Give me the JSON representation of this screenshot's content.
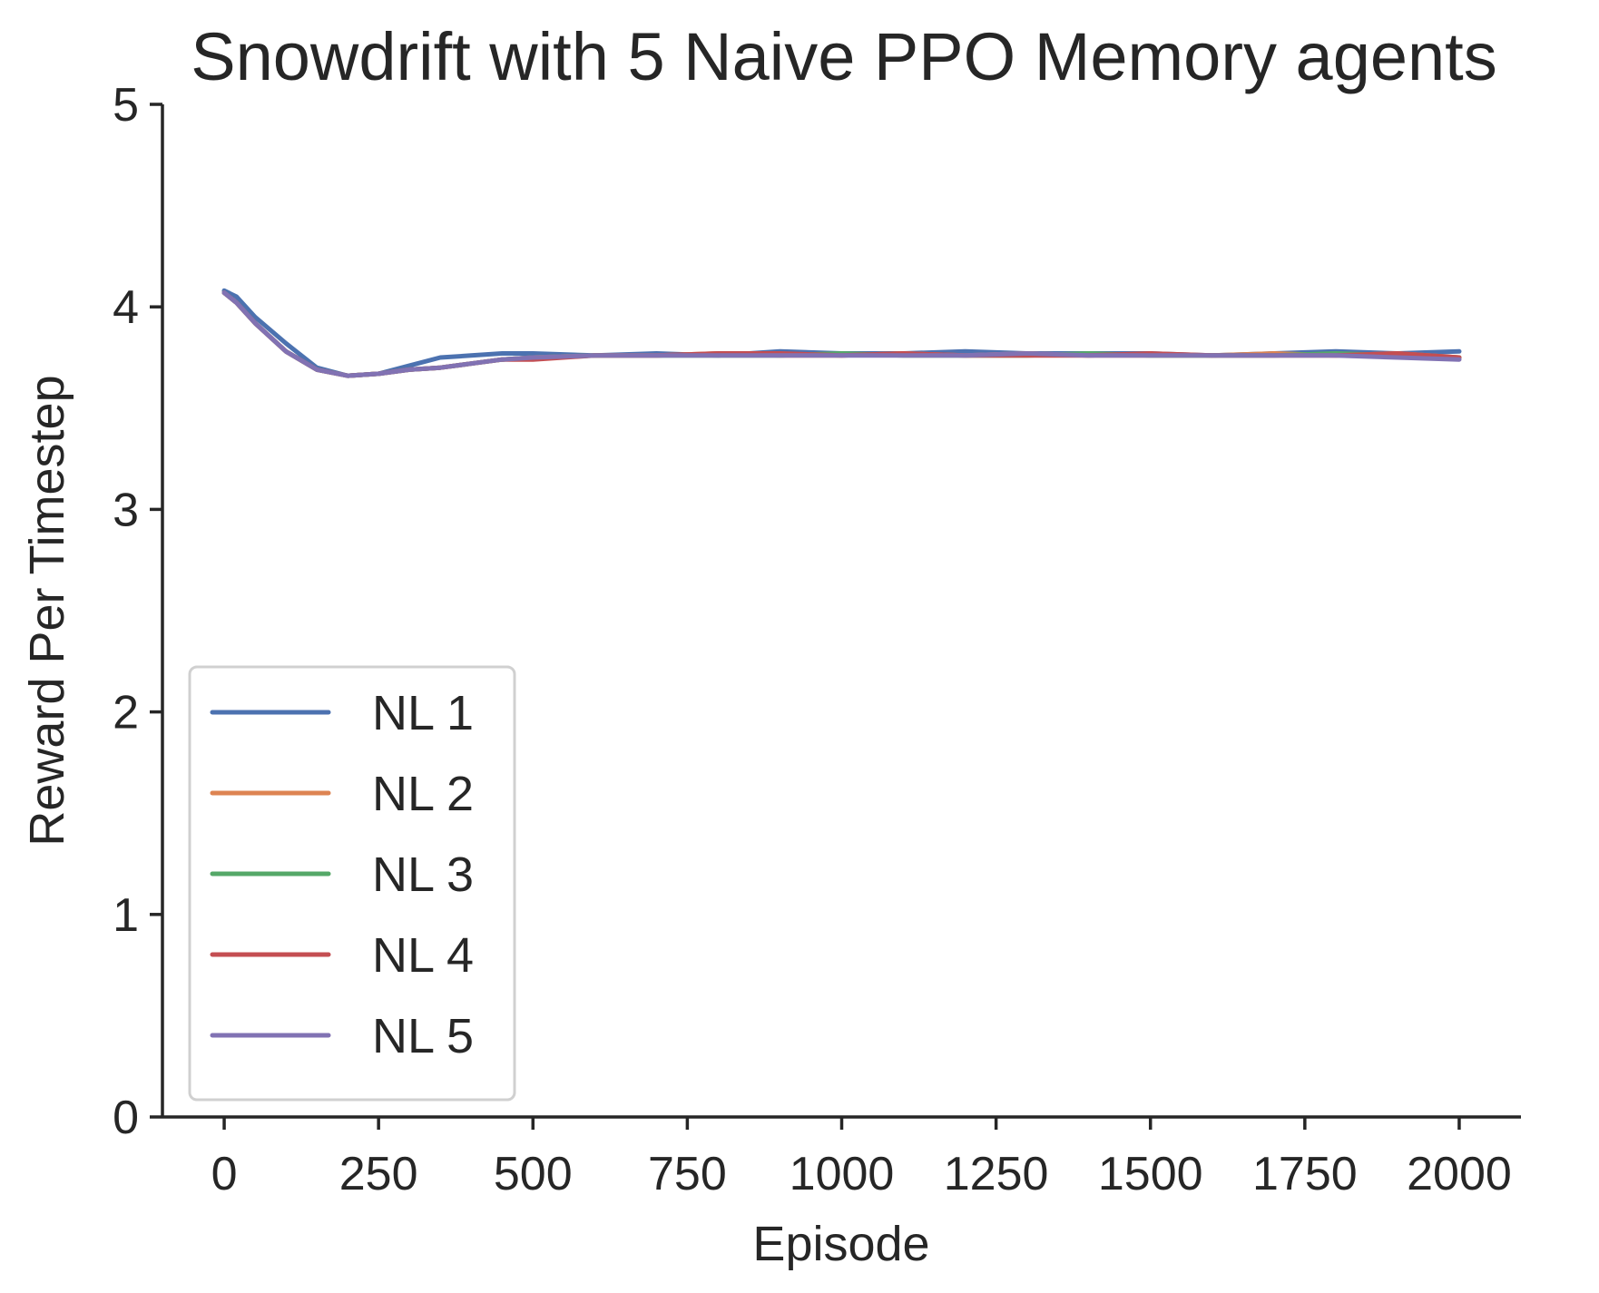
{
  "chart_data": {
    "type": "line",
    "title": "Snowdrift with 5 Naive PPO Memory agents",
    "xlabel": "Episode",
    "ylabel": "Reward Per Timestep",
    "xlim": [
      -100,
      2100
    ],
    "ylim": [
      0,
      5
    ],
    "x_ticks": [
      0,
      250,
      500,
      750,
      1000,
      1250,
      1500,
      1750,
      2000
    ],
    "y_ticks": [
      0,
      1,
      2,
      3,
      4,
      5
    ],
    "legend_position": "lower-left",
    "grid": false,
    "series": [
      {
        "name": "NL 1",
        "color": "#4c72b0",
        "x": [
          0,
          20,
          50,
          100,
          150,
          200,
          250,
          300,
          350,
          400,
          450,
          500,
          600,
          700,
          800,
          900,
          1000,
          1100,
          1200,
          1300,
          1400,
          1500,
          1600,
          1700,
          1800,
          1900,
          2000
        ],
        "y": [
          4.08,
          4.05,
          3.95,
          3.82,
          3.7,
          3.66,
          3.67,
          3.71,
          3.75,
          3.76,
          3.77,
          3.77,
          3.76,
          3.77,
          3.76,
          3.78,
          3.77,
          3.77,
          3.78,
          3.77,
          3.77,
          3.77,
          3.76,
          3.77,
          3.78,
          3.77,
          3.78
        ]
      },
      {
        "name": "NL 2",
        "color": "#dd8452",
        "x": [
          0,
          20,
          50,
          100,
          150,
          200,
          250,
          300,
          350,
          400,
          450,
          500,
          600,
          700,
          800,
          900,
          1000,
          1100,
          1200,
          1300,
          1400,
          1500,
          1600,
          1700,
          1800,
          1900,
          2000
        ],
        "y": [
          4.07,
          4.02,
          3.92,
          3.78,
          3.69,
          3.66,
          3.67,
          3.69,
          3.7,
          3.72,
          3.74,
          3.75,
          3.76,
          3.76,
          3.77,
          3.76,
          3.76,
          3.77,
          3.76,
          3.77,
          3.76,
          3.76,
          3.76,
          3.77,
          3.76,
          3.77,
          3.75
        ]
      },
      {
        "name": "NL 3",
        "color": "#55a868",
        "x": [
          0,
          20,
          50,
          100,
          150,
          200,
          250,
          300,
          350,
          400,
          450,
          500,
          600,
          700,
          800,
          900,
          1000,
          1100,
          1200,
          1300,
          1400,
          1500,
          1600,
          1700,
          1800,
          1900,
          2000
        ],
        "y": [
          4.07,
          4.02,
          3.92,
          3.78,
          3.69,
          3.66,
          3.67,
          3.69,
          3.7,
          3.72,
          3.74,
          3.75,
          3.76,
          3.76,
          3.76,
          3.76,
          3.77,
          3.76,
          3.76,
          3.76,
          3.77,
          3.76,
          3.76,
          3.76,
          3.77,
          3.76,
          3.75
        ]
      },
      {
        "name": "NL 4",
        "color": "#c44e52",
        "x": [
          0,
          20,
          50,
          100,
          150,
          200,
          250,
          300,
          350,
          400,
          450,
          500,
          600,
          700,
          800,
          900,
          1000,
          1100,
          1200,
          1300,
          1400,
          1500,
          1600,
          1700,
          1800,
          1900,
          2000
        ],
        "y": [
          4.07,
          4.02,
          3.92,
          3.78,
          3.69,
          3.66,
          3.67,
          3.69,
          3.7,
          3.72,
          3.74,
          3.74,
          3.76,
          3.76,
          3.77,
          3.77,
          3.76,
          3.77,
          3.76,
          3.76,
          3.76,
          3.77,
          3.76,
          3.76,
          3.76,
          3.77,
          3.75
        ]
      },
      {
        "name": "NL 5",
        "color": "#8172b3",
        "x": [
          0,
          20,
          50,
          100,
          150,
          200,
          250,
          300,
          350,
          400,
          450,
          500,
          600,
          700,
          800,
          900,
          1000,
          1100,
          1200,
          1300,
          1400,
          1500,
          1600,
          1700,
          1800,
          1900,
          2000
        ],
        "y": [
          4.07,
          4.02,
          3.92,
          3.78,
          3.69,
          3.66,
          3.67,
          3.69,
          3.7,
          3.72,
          3.74,
          3.75,
          3.76,
          3.76,
          3.76,
          3.76,
          3.76,
          3.76,
          3.76,
          3.77,
          3.76,
          3.76,
          3.76,
          3.76,
          3.76,
          3.75,
          3.74
        ]
      }
    ]
  }
}
